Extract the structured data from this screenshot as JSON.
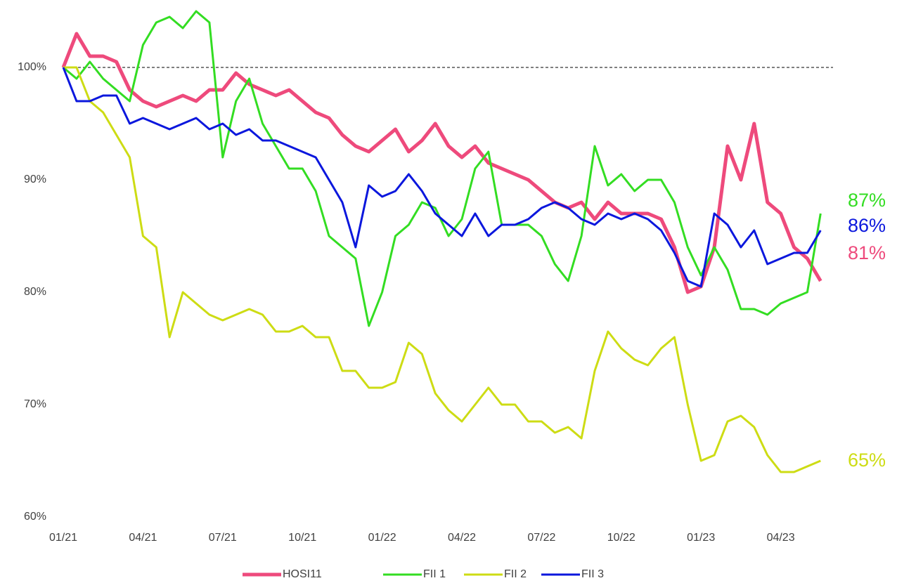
{
  "chart_data": {
    "type": "line",
    "x": [
      "01/21",
      null,
      null,
      null,
      null,
      null,
      "04/21",
      null,
      null,
      null,
      null,
      null,
      "07/21",
      null,
      null,
      null,
      null,
      null,
      "10/21",
      null,
      null,
      null,
      null,
      null,
      "01/22",
      null,
      null,
      null,
      null,
      null,
      "04/22",
      null,
      null,
      null,
      null,
      null,
      "07/22",
      null,
      null,
      null,
      null,
      null,
      "10/22",
      null,
      null,
      null,
      null,
      null,
      "01/23",
      null,
      null,
      null,
      null,
      null,
      "04/23",
      null,
      null,
      null
    ],
    "ylim": [
      60,
      105
    ],
    "yticks": [
      {
        "value": 60,
        "label": "60%"
      },
      {
        "value": 70,
        "label": "70%"
      },
      {
        "value": 80,
        "label": "80%"
      },
      {
        "value": 90,
        "label": "90%"
      },
      {
        "value": 100,
        "label": "100%"
      }
    ],
    "reference_line": 100,
    "legend": "bottom",
    "series": [
      {
        "name": "HOSI11",
        "color": "#ee4a7c",
        "end_label": "81%",
        "values": [
          100,
          103,
          101,
          101,
          100.5,
          98,
          97,
          96.5,
          97,
          97.5,
          97,
          98,
          98,
          99.5,
          98.5,
          98,
          97.5,
          98,
          97,
          96,
          95.5,
          94,
          93,
          92.5,
          93.5,
          94.5,
          92.5,
          93.5,
          95,
          93,
          92,
          93,
          91.5,
          91,
          90.5,
          90,
          89,
          88,
          87.5,
          88,
          86.5,
          88,
          87,
          87,
          87,
          86.5,
          84,
          80,
          80.5,
          84,
          93,
          90,
          95,
          88,
          87,
          84,
          83,
          81
        ]
      },
      {
        "name": "FII 1",
        "color": "#33dd22",
        "end_label": "87%",
        "values": [
          100,
          99,
          100.5,
          99,
          98,
          97,
          102,
          104,
          104.5,
          103.5,
          105,
          104,
          92,
          97,
          99,
          95,
          93,
          91,
          91,
          89,
          85,
          84,
          83,
          77,
          80,
          85,
          86,
          88,
          87.5,
          85,
          86.5,
          91,
          92.5,
          86,
          86,
          86,
          85,
          82.5,
          81,
          85,
          93,
          89.5,
          90.5,
          89,
          90,
          90,
          88,
          84,
          81.5,
          84,
          82,
          78.5,
          78.5,
          78,
          79,
          79.5,
          80,
          87
        ]
      },
      {
        "name": "FII 2",
        "color": "#cddc14",
        "end_label": "65%",
        "values": [
          100,
          100,
          97,
          96,
          94,
          92,
          85,
          84,
          76,
          80,
          79,
          78,
          77.5,
          78,
          78.5,
          78,
          76.5,
          76.5,
          77,
          76,
          76,
          73,
          73,
          71.5,
          71.5,
          72,
          75.5,
          74.5,
          71,
          69.5,
          68.5,
          70,
          71.5,
          70,
          70,
          68.5,
          68.5,
          67.5,
          68,
          67,
          73,
          76.5,
          75,
          74,
          73.5,
          75,
          76,
          70,
          65,
          65.5,
          68.5,
          69,
          68,
          65.5,
          64,
          64,
          64.5,
          65
        ]
      },
      {
        "name": "FII 3",
        "color": "#0b17dd",
        "end_label": "86%",
        "values": [
          100,
          97,
          97,
          97.5,
          97.5,
          95,
          95.5,
          95,
          94.5,
          95,
          95.5,
          94.5,
          95,
          94,
          94.5,
          93.5,
          93.5,
          93,
          92.5,
          92,
          90,
          88,
          84,
          89.5,
          88.5,
          89,
          90.5,
          89,
          87,
          86,
          85,
          87,
          85,
          86,
          86,
          86.5,
          87.5,
          88,
          87.5,
          86.5,
          86,
          87,
          86.5,
          87,
          86.5,
          85.5,
          83.5,
          81,
          80.5,
          87,
          86,
          84,
          85.5,
          82.5,
          83,
          83.5,
          83.5,
          85.5
        ]
      }
    ]
  }
}
